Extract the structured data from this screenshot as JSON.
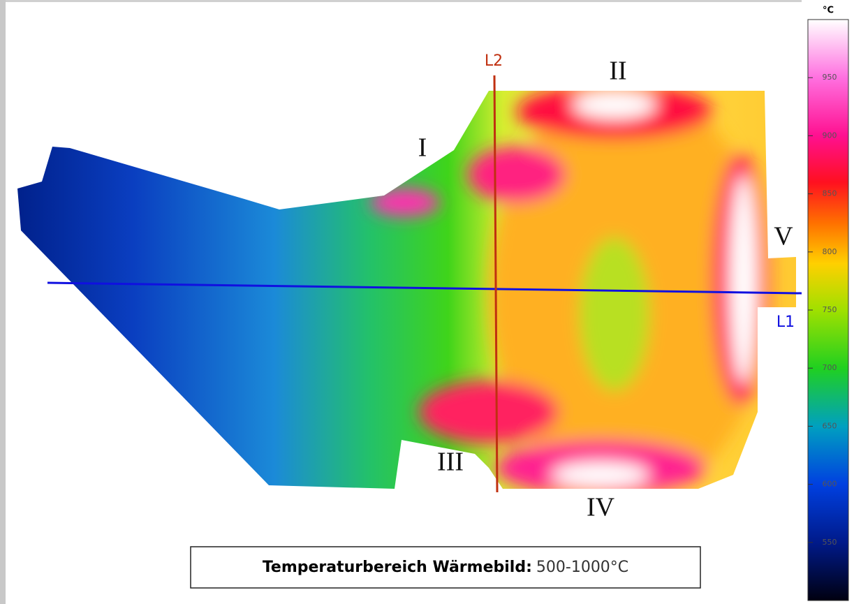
{
  "image": {
    "regions": [
      "I",
      "II",
      "III",
      "IV",
      "V"
    ],
    "lines": [
      "L1",
      "L2"
    ]
  },
  "colorbar": {
    "unit": "°C",
    "lim": [
      500,
      1000
    ],
    "ticks": [
      550,
      600,
      650,
      700,
      750,
      800,
      850,
      900,
      950
    ]
  },
  "caption": {
    "label": "Temperaturbereich Wärmebild:",
    "range": "500-1000°C"
  }
}
